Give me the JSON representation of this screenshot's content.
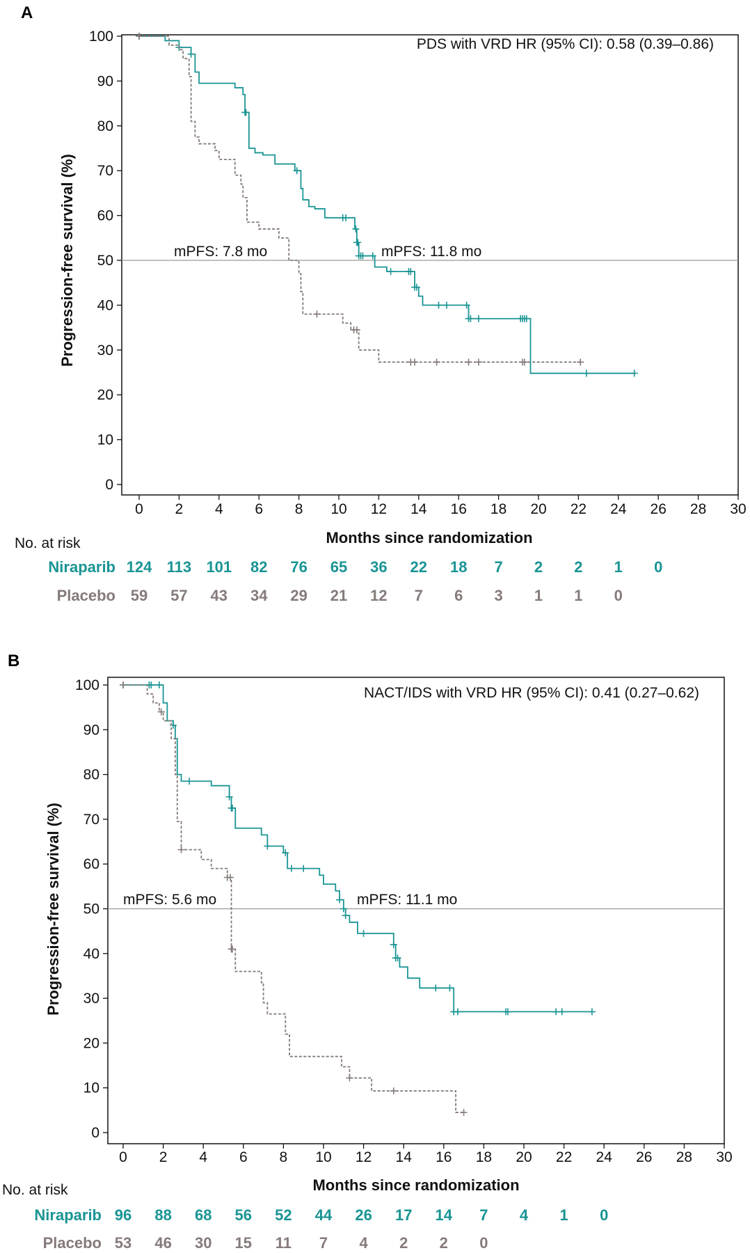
{
  "colors": {
    "niraparib": "#1a9494",
    "placebo": "#857a7a",
    "reference": "#999999"
  },
  "chart_data": [
    {
      "type": "line",
      "panel_label": "A",
      "annotation": "PDS with VRD HR (95% CI): 0.58 (0.39–0.86)",
      "xlabel": "Months since randomization",
      "ylabel": "Progression-free survival (%)",
      "xlim": [
        0,
        30
      ],
      "ylim": [
        0,
        100
      ],
      "xticks": [
        0,
        2,
        4,
        6,
        8,
        10,
        12,
        14,
        16,
        18,
        20,
        22,
        24,
        26,
        28,
        30
      ],
      "yticks": [
        0,
        10,
        20,
        30,
        40,
        50,
        60,
        70,
        80,
        90,
        100
      ],
      "reference_line_y": 50,
      "median_labels": [
        {
          "text": "mPFS: 7.8 mo",
          "series": "Placebo"
        },
        {
          "text": "mPFS: 11.8 mo",
          "series": "Niraparib"
        }
      ],
      "series": [
        {
          "name": "Niraparib",
          "style": "solid",
          "steps": [
            [
              0,
              100
            ],
            [
              1.3,
              99
            ],
            [
              2.0,
              97.5
            ],
            [
              2.6,
              96
            ],
            [
              2.8,
              92
            ],
            [
              3.0,
              89.5
            ],
            [
              4.8,
              88.5
            ],
            [
              5.2,
              87
            ],
            [
              5.3,
              83
            ],
            [
              5.5,
              75
            ],
            [
              5.8,
              74
            ],
            [
              6.2,
              73.5
            ],
            [
              6.8,
              71.5
            ],
            [
              7.8,
              70
            ],
            [
              8.1,
              66
            ],
            [
              8.2,
              63.5
            ],
            [
              8.5,
              62
            ],
            [
              8.8,
              61.5
            ],
            [
              9.3,
              59.5
            ],
            [
              10.8,
              57
            ],
            [
              10.9,
              54
            ],
            [
              11.0,
              51
            ],
            [
              11.8,
              48.5
            ],
            [
              12.4,
              47.5
            ],
            [
              13.8,
              44
            ],
            [
              14.0,
              42
            ],
            [
              14.2,
              40
            ],
            [
              16.5,
              37
            ],
            [
              19.6,
              24.8
            ]
          ],
          "end": 24.8,
          "censored": [
            0,
            2.0,
            2.6,
            5.3,
            5.35,
            7.9,
            10.2,
            10.35,
            10.85,
            10.9,
            10.95,
            11.0,
            11.1,
            11.2,
            11.7,
            12.6,
            13.5,
            13.6,
            13.8,
            13.9,
            15.0,
            15.4,
            16.4,
            16.5,
            16.6,
            17.0,
            19.1,
            19.2,
            19.3,
            19.4,
            22.4,
            24.8
          ]
        },
        {
          "name": "Placebo",
          "style": "dashed",
          "steps": [
            [
              0,
              100
            ],
            [
              1.5,
              98
            ],
            [
              2.0,
              97
            ],
            [
              2.2,
              95
            ],
            [
              2.5,
              91
            ],
            [
              2.6,
              81
            ],
            [
              2.8,
              77.5
            ],
            [
              3.0,
              76
            ],
            [
              3.8,
              74.5
            ],
            [
              4.0,
              72.5
            ],
            [
              4.8,
              69
            ],
            [
              5.1,
              67
            ],
            [
              5.2,
              64
            ],
            [
              5.4,
              58.5
            ],
            [
              6.0,
              57
            ],
            [
              7.0,
              55
            ],
            [
              7.5,
              50
            ],
            [
              8.0,
              47
            ],
            [
              8.1,
              43
            ],
            [
              8.2,
              38
            ],
            [
              10.2,
              36
            ],
            [
              10.6,
              34.5
            ],
            [
              11.0,
              30
            ],
            [
              12.0,
              27.3
            ]
          ],
          "end": 22.1,
          "censored": [
            0,
            8.9,
            10.75,
            10.9,
            13.6,
            13.8,
            14.9,
            16.5,
            17.0,
            19.2,
            19.3,
            22.1
          ]
        }
      ],
      "risk_table": {
        "title": "No. at risk",
        "rows": [
          {
            "name": "Niraparib",
            "values": [
              "124",
              "113",
              "101",
              "82",
              "76",
              "65",
              "36",
              "22",
              "18",
              "7",
              "2",
              "2",
              "1",
              "0"
            ]
          },
          {
            "name": "Placebo",
            "values": [
              "59",
              "57",
              "43",
              "34",
              "29",
              "21",
              "12",
              "7",
              "6",
              "3",
              "1",
              "1",
              "0"
            ]
          }
        ]
      }
    },
    {
      "type": "line",
      "panel_label": "B",
      "annotation": "NACT/IDS with VRD HR (95% CI): 0.41 (0.27–0.62)",
      "xlabel": "Months since randomization",
      "ylabel": "Progression-free survival (%)",
      "xlim": [
        0,
        30
      ],
      "ylim": [
        0,
        100
      ],
      "xticks": [
        0,
        2,
        4,
        6,
        8,
        10,
        12,
        14,
        16,
        18,
        20,
        22,
        24,
        26,
        28,
        30
      ],
      "yticks": [
        0,
        10,
        20,
        30,
        40,
        50,
        60,
        70,
        80,
        90,
        100
      ],
      "reference_line_y": 50,
      "median_labels": [
        {
          "text": "mPFS: 5.6 mo",
          "series": "Placebo"
        },
        {
          "text": "mPFS: 11.1 mo",
          "series": "Niraparib"
        }
      ],
      "series": [
        {
          "name": "Niraparib",
          "style": "solid",
          "steps": [
            [
              0,
              100
            ],
            [
              2.0,
              96
            ],
            [
              2.2,
              92
            ],
            [
              2.5,
              91
            ],
            [
              2.6,
              88
            ],
            [
              2.7,
              80
            ],
            [
              2.9,
              78.5
            ],
            [
              4.4,
              77.5
            ],
            [
              5.3,
              75
            ],
            [
              5.4,
              72.5
            ],
            [
              5.6,
              68
            ],
            [
              6.9,
              66.5
            ],
            [
              7.2,
              64
            ],
            [
              8.0,
              62.5
            ],
            [
              8.2,
              59
            ],
            [
              9.8,
              57.5
            ],
            [
              10.0,
              55.5
            ],
            [
              10.6,
              54
            ],
            [
              10.8,
              52
            ],
            [
              11.0,
              50
            ],
            [
              11.1,
              48.5
            ],
            [
              11.3,
              47
            ],
            [
              11.7,
              44.5
            ],
            [
              13.5,
              42
            ],
            [
              13.6,
              39
            ],
            [
              13.8,
              37
            ],
            [
              14.2,
              34.5
            ],
            [
              14.8,
              32.3
            ],
            [
              16.5,
              27
            ]
          ],
          "end": 23.4,
          "censored": [
            0,
            1.3,
            1.4,
            1.8,
            2.5,
            3.3,
            5.3,
            5.4,
            5.45,
            7.2,
            8.1,
            8.4,
            9.0,
            10.8,
            11.0,
            11.1,
            12.0,
            13.5,
            13.6,
            13.7,
            15.6,
            16.3,
            16.5,
            16.7,
            19.1,
            19.2,
            21.6,
            21.9,
            23.4
          ]
        },
        {
          "name": "Placebo",
          "style": "dashed",
          "steps": [
            [
              0,
              100
            ],
            [
              1.2,
              98
            ],
            [
              1.5,
              96
            ],
            [
              1.8,
              94
            ],
            [
              2.0,
              92
            ],
            [
              2.4,
              88
            ],
            [
              2.6,
              80
            ],
            [
              2.7,
              69.5
            ],
            [
              2.9,
              63.2
            ],
            [
              3.9,
              61
            ],
            [
              4.4,
              59
            ],
            [
              5.2,
              57
            ],
            [
              5.4,
              41
            ],
            [
              5.6,
              36
            ],
            [
              6.9,
              33.5
            ],
            [
              7.0,
              29
            ],
            [
              7.2,
              26.5
            ],
            [
              8.1,
              22
            ],
            [
              8.3,
              17
            ],
            [
              10.9,
              14.7
            ],
            [
              11.3,
              12.2
            ],
            [
              12.4,
              9.3
            ],
            [
              16.6,
              4.5
            ]
          ],
          "end": 17.0,
          "censored": [
            0,
            1.9,
            2.9,
            5.2,
            5.35,
            5.45,
            5.4,
            11.3,
            13.5,
            17.0
          ]
        }
      ],
      "risk_table": {
        "title": "No. at risk",
        "rows": [
          {
            "name": "Niraparib",
            "values": [
              "96",
              "88",
              "68",
              "56",
              "52",
              "44",
              "26",
              "17",
              "14",
              "7",
              "4",
              "1",
              "0"
            ]
          },
          {
            "name": "Placebo",
            "values": [
              "53",
              "46",
              "30",
              "15",
              "11",
              "7",
              "4",
              "2",
              "2",
              "0"
            ]
          }
        ]
      }
    }
  ]
}
